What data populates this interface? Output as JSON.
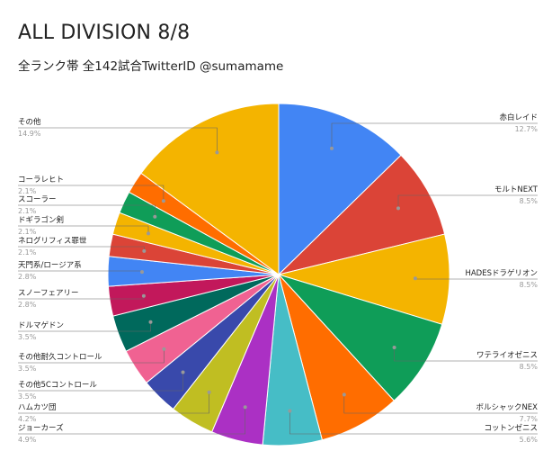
{
  "title": "ALL DIVISION 8/8",
  "subtitle": "全ランク帯 全142試合TwitterID @sumamame",
  "chart_data": {
    "type": "pie",
    "title": "ALL DIVISION 8/8",
    "subtitle": "全ランク帯 全142試合TwitterID @sumamame",
    "legend": "labels-around",
    "slices": [
      {
        "label": "赤白レイド",
        "pct_text": "12.7%",
        "value": 12.7,
        "color": "#4285F4"
      },
      {
        "label": "モルトNEXT",
        "pct_text": "8.5%",
        "value": 8.5,
        "color": "#DB4437"
      },
      {
        "label": "HADESドラゲリオン",
        "pct_text": "8.5%",
        "value": 8.5,
        "color": "#F4B400"
      },
      {
        "label": "ワテライオゼニス",
        "pct_text": "8.5%",
        "value": 8.5,
        "color": "#0F9D58"
      },
      {
        "label": "ボルシャックNEX",
        "pct_text": "7.7%",
        "value": 7.7,
        "color": "#FF6D00"
      },
      {
        "label": "コットンゼニス",
        "pct_text": "5.6%",
        "value": 5.6,
        "color": "#46BDC6"
      },
      {
        "label": "ジョーカーズ",
        "pct_text": "4.9%",
        "value": 4.9,
        "color": "#AB30C4"
      },
      {
        "label": "ハムカツ団",
        "pct_text": "4.2%",
        "value": 4.2,
        "color": "#C0BE22"
      },
      {
        "label": "その他5Cコントロール",
        "pct_text": "3.5%",
        "value": 3.5,
        "color": "#3949AB"
      },
      {
        "label": "その他耐久コントロール",
        "pct_text": "3.5%",
        "value": 3.5,
        "color": "#F06292"
      },
      {
        "label": "ドルマゲドン",
        "pct_text": "3.5%",
        "value": 3.5,
        "color": "#00695C"
      },
      {
        "label": "スノーフェアリー",
        "pct_text": "2.8%",
        "value": 2.8,
        "color": "#C2185B"
      },
      {
        "label": "天門系/ロージア系",
        "pct_text": "2.8%",
        "value": 2.8,
        "color": "#4285F4"
      },
      {
        "label": "ネログリフィス罪世",
        "pct_text": "2.1%",
        "value": 2.1,
        "color": "#DB4437"
      },
      {
        "label": "ドギラゴン剣",
        "pct_text": "2.1%",
        "value": 2.1,
        "color": "#F4B400"
      },
      {
        "label": "スコーラー",
        "pct_text": "2.1%",
        "value": 2.1,
        "color": "#0F9D58"
      },
      {
        "label": "コーラレヒト",
        "pct_text": "2.1%",
        "value": 2.1,
        "color": "#FF6D00"
      },
      {
        "label": "その他",
        "pct_text": "14.9%",
        "value": 14.9,
        "color": "#F4B400"
      }
    ]
  }
}
